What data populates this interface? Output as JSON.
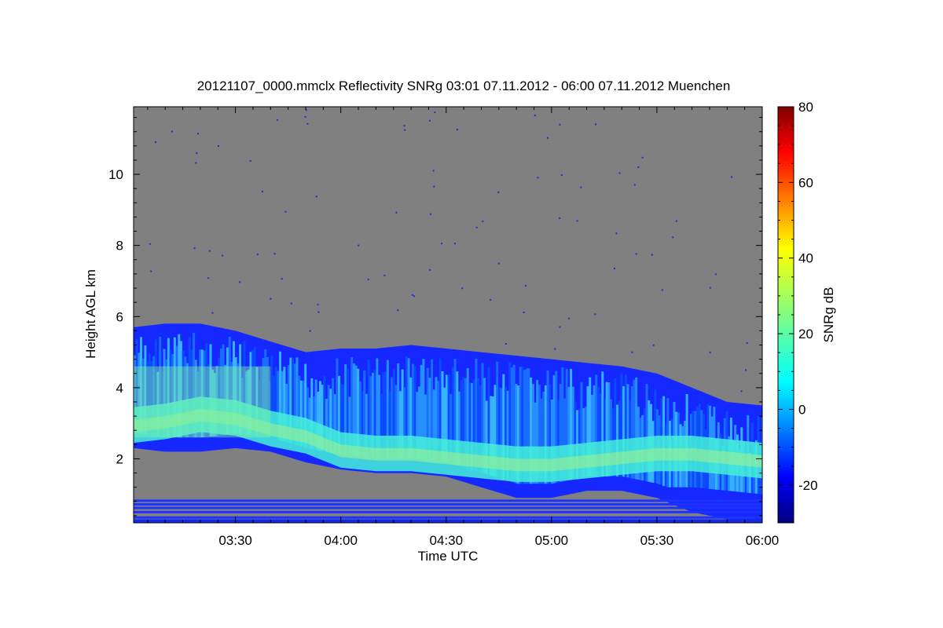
{
  "chart_data": {
    "type": "heatmap",
    "title": "20121107_0000.mmclx Reflectivity SNRg   03:01 07.11.2012 - 06:00 07.11.2012 Muenchen",
    "xlabel": "Time UTC",
    "ylabel": "Height AGL km",
    "colorbar_label": "SNRg dB",
    "xlim": [
      "03:01",
      "06:00"
    ],
    "ylim": [
      0.2,
      11.9
    ],
    "x_ticks": [
      "03:30",
      "04:00",
      "04:30",
      "05:00",
      "05:30",
      "06:00"
    ],
    "y_ticks": [
      2,
      4,
      6,
      8,
      10
    ],
    "colorbar_range": [
      -30,
      80
    ],
    "colorbar_ticks": [
      -20,
      0,
      20,
      40,
      60,
      80
    ],
    "colormap": "jet",
    "no_signal_color": "#808080",
    "echo_profile": [
      {
        "time": "03:01",
        "bottom": 2.3,
        "top": 5.7,
        "core": 2.9
      },
      {
        "time": "03:10",
        "bottom": 2.2,
        "top": 5.8,
        "core": 3.0
      },
      {
        "time": "03:20",
        "bottom": 2.2,
        "top": 5.8,
        "core": 3.2
      },
      {
        "time": "03:30",
        "bottom": 2.3,
        "top": 5.6,
        "core": 3.1
      },
      {
        "time": "03:40",
        "bottom": 2.2,
        "top": 5.3,
        "core": 2.8
      },
      {
        "time": "03:50",
        "bottom": 1.9,
        "top": 5.0,
        "core": 2.6
      },
      {
        "time": "04:00",
        "bottom": 1.7,
        "top": 5.1,
        "core": 2.2
      },
      {
        "time": "04:10",
        "bottom": 1.6,
        "top": 5.1,
        "core": 2.1
      },
      {
        "time": "04:20",
        "bottom": 1.6,
        "top": 5.2,
        "core": 2.1
      },
      {
        "time": "04:30",
        "bottom": 1.5,
        "top": 5.1,
        "core": 2.0
      },
      {
        "time": "04:40",
        "bottom": 1.2,
        "top": 5.0,
        "core": 1.9
      },
      {
        "time": "04:50",
        "bottom": 0.9,
        "top": 4.9,
        "core": 1.8
      },
      {
        "time": "05:00",
        "bottom": 0.9,
        "top": 4.8,
        "core": 1.8
      },
      {
        "time": "05:10",
        "bottom": 1.1,
        "top": 4.7,
        "core": 1.9
      },
      {
        "time": "05:20",
        "bottom": 1.1,
        "top": 4.6,
        "core": 2.0
      },
      {
        "time": "05:30",
        "bottom": 0.9,
        "top": 4.4,
        "core": 2.1
      },
      {
        "time": "05:40",
        "bottom": 0.5,
        "top": 4.0,
        "core": 2.1
      },
      {
        "time": "05:50",
        "bottom": 0.3,
        "top": 3.6,
        "core": 2.0
      },
      {
        "time": "06:00",
        "bottom": 0.2,
        "top": 3.5,
        "core": 1.9
      }
    ],
    "near_ground_clutter_km": [
      0.25,
      0.35,
      0.5,
      0.62,
      0.72,
      0.82
    ]
  }
}
